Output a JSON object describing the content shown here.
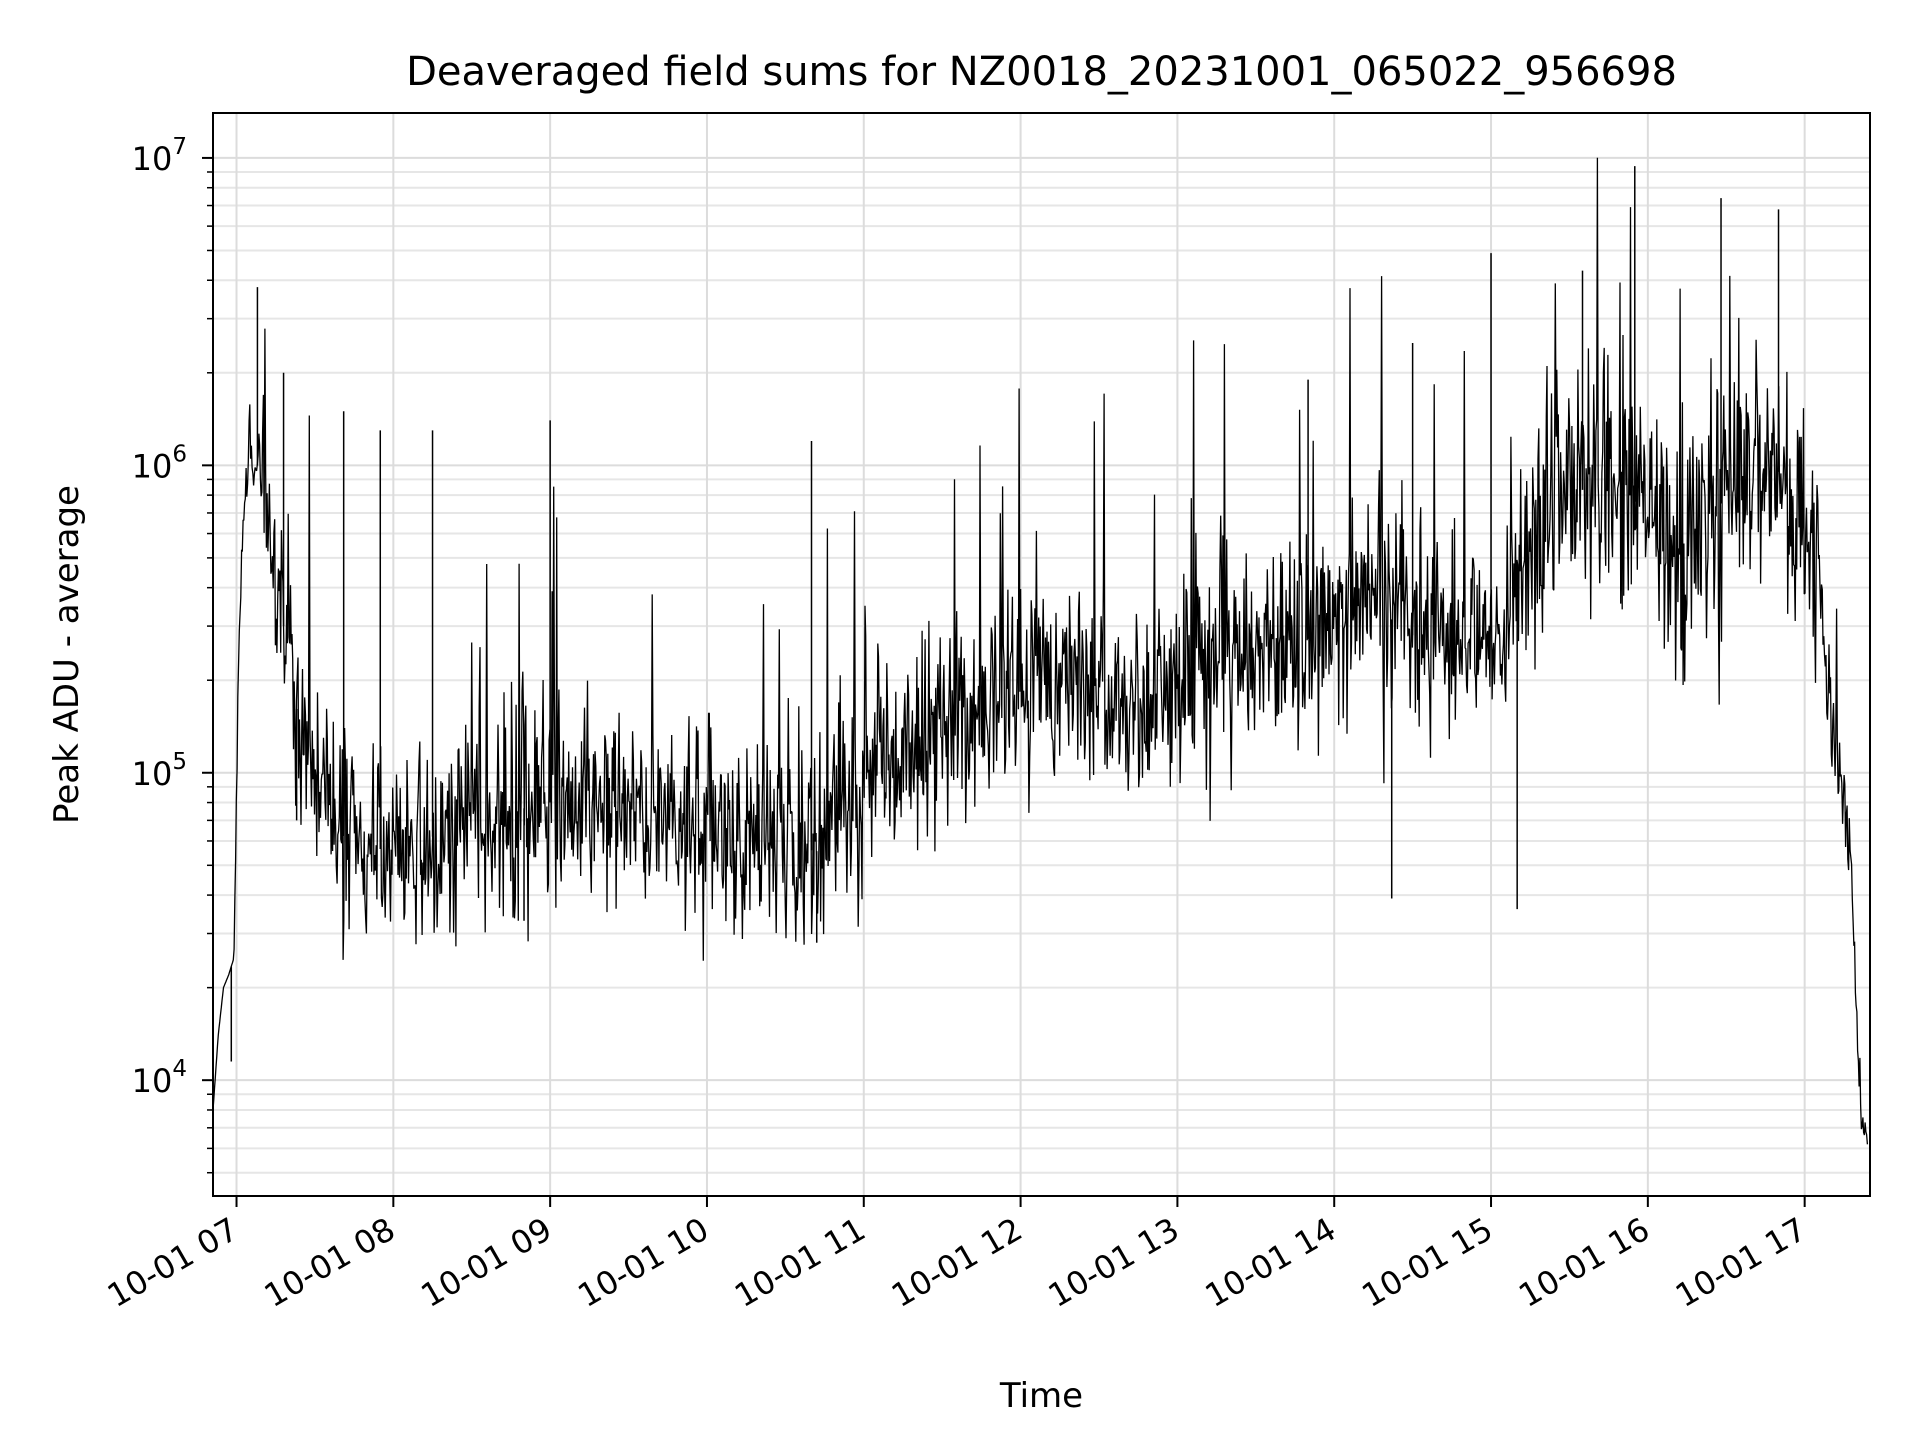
{
  "chart_data": {
    "type": "line",
    "title": "Deaveraged field sums for NZ0018_20231001_065022_956698",
    "xlabel": "Time",
    "ylabel": "Peak ADU - average",
    "yscale": "log",
    "ylim": [
      4200,
      14000000
    ],
    "xlim": [
      "2023-10-01 06:51",
      "2023-10-01 17:25"
    ],
    "grid": true,
    "grid_minor": true,
    "line_color": "#000000",
    "x_ticks": [
      {
        "value": "2023-10-01 07:00",
        "label": "10-01 07"
      },
      {
        "value": "2023-10-01 08:00",
        "label": "10-01 08"
      },
      {
        "value": "2023-10-01 09:00",
        "label": "10-01 09"
      },
      {
        "value": "2023-10-01 10:00",
        "label": "10-01 10"
      },
      {
        "value": "2023-10-01 11:00",
        "label": "10-01 11"
      },
      {
        "value": "2023-10-01 12:00",
        "label": "10-01 12"
      },
      {
        "value": "2023-10-01 13:00",
        "label": "10-01 13"
      },
      {
        "value": "2023-10-01 14:00",
        "label": "10-01 14"
      },
      {
        "value": "2023-10-01 15:00",
        "label": "10-01 15"
      },
      {
        "value": "2023-10-01 16:00",
        "label": "10-01 16"
      },
      {
        "value": "2023-10-01 17:00",
        "label": "10-01 17"
      }
    ],
    "y_ticks": [
      {
        "value": 10000,
        "base": "10",
        "exp": "4"
      },
      {
        "value": 100000,
        "base": "10",
        "exp": "5"
      },
      {
        "value": 1000000,
        "base": "10",
        "exp": "6"
      },
      {
        "value": 10000000,
        "base": "10",
        "exp": "7"
      }
    ],
    "series": [
      {
        "x": [
          "2023-10-01 06:51",
          "2023-10-01 06:53",
          "2023-10-01 06:55",
          "2023-10-01 06:57",
          "2023-10-01 06:59",
          "2023-10-01 07:01",
          "2023-10-01 07:03",
          "2023-10-01 07:05",
          "2023-10-01 07:07",
          "2023-10-01 07:09",
          "2023-10-01 07:12",
          "2023-10-01 07:15",
          "2023-10-01 07:18",
          "2023-10-01 07:21",
          "2023-10-01 07:25",
          "2023-10-01 07:30",
          "2023-10-01 07:36",
          "2023-10-01 07:42",
          "2023-10-01 07:50",
          "2023-10-01 08:00",
          "2023-10-01 08:15",
          "2023-10-01 08:30",
          "2023-10-01 08:45",
          "2023-10-01 09:00",
          "2023-10-01 09:15",
          "2023-10-01 09:30",
          "2023-10-01 09:45",
          "2023-10-01 10:00",
          "2023-10-01 10:15",
          "2023-10-01 10:30",
          "2023-10-01 10:45",
          "2023-10-01 11:00",
          "2023-10-01 11:15",
          "2023-10-01 11:30",
          "2023-10-01 11:45",
          "2023-10-01 12:00",
          "2023-10-01 12:15",
          "2023-10-01 12:30",
          "2023-10-01 12:45",
          "2023-10-01 13:00",
          "2023-10-01 13:15",
          "2023-10-01 13:30",
          "2023-10-01 13:45",
          "2023-10-01 14:00",
          "2023-10-01 14:15",
          "2023-10-01 14:30",
          "2023-10-01 14:45",
          "2023-10-01 15:00",
          "2023-10-01 15:15",
          "2023-10-01 15:30",
          "2023-10-01 15:45",
          "2023-10-01 16:00",
          "2023-10-01 16:15",
          "2023-10-01 16:30",
          "2023-10-01 16:45",
          "2023-10-01 17:00",
          "2023-10-01 17:05",
          "2023-10-01 17:10",
          "2023-10-01 17:14",
          "2023-10-01 17:18",
          "2023-10-01 17:21",
          "2023-10-01 17:24"
        ],
        "values": [
          8000,
          14000,
          20000,
          22000,
          25000,
          300000,
          800000,
          1100000,
          950000,
          1050000,
          600000,
          400000,
          300000,
          200000,
          130000,
          100000,
          75000,
          60000,
          55000,
          58000,
          62000,
          70000,
          75000,
          80000,
          85000,
          80000,
          75000,
          65000,
          60000,
          58000,
          55000,
          90000,
          130000,
          150000,
          160000,
          200000,
          220000,
          180000,
          160000,
          200000,
          220000,
          250000,
          260000,
          300000,
          350000,
          280000,
          250000,
          300000,
          500000,
          800000,
          900000,
          700000,
          500000,
          800000,
          1200000,
          600000,
          500000,
          150000,
          90000,
          50000,
          8000,
          6000
        ],
        "spread": [
          1,
          1,
          1,
          1,
          1,
          1.3,
          1.3,
          1.3,
          1.3,
          1.5,
          1.6,
          1.7,
          1.8,
          1.9,
          2,
          2.1,
          2.2,
          2.3,
          2.3,
          2.4,
          2.4,
          2.4,
          2.4,
          2.4,
          2.4,
          2.4,
          2.4,
          2.4,
          2.4,
          2.4,
          2.4,
          2.4,
          2.4,
          2.4,
          2.4,
          2.4,
          2.4,
          2.4,
          2.4,
          2.4,
          2.4,
          2.5,
          2.5,
          2.5,
          2.6,
          2.6,
          2.6,
          2.7,
          2.8,
          2.8,
          2.8,
          2.8,
          2.8,
          2.8,
          2.8,
          2.5,
          2,
          1.8,
          1.5,
          1.3,
          1.2,
          1.1
        ]
      }
    ],
    "peaks": [
      {
        "x": "2023-10-01 07:08",
        "value": 3800000
      },
      {
        "x": "2023-10-01 07:18",
        "value": 2000000
      },
      {
        "x": "2023-10-01 07:41",
        "value": 1500000
      },
      {
        "x": "2023-10-01 07:55",
        "value": 1300000
      },
      {
        "x": "2023-10-01 08:15",
        "value": 1300000
      },
      {
        "x": "2023-10-01 09:00",
        "value": 1400000
      },
      {
        "x": "2023-10-01 10:40",
        "value": 1200000
      },
      {
        "x": "2023-10-01 13:50",
        "value": 1900000
      },
      {
        "x": "2023-10-01 14:30",
        "value": 2500000
      },
      {
        "x": "2023-10-01 15:00",
        "value": 4900000
      },
      {
        "x": "2023-10-01 15:35",
        "value": 4300000
      },
      {
        "x": "2023-10-01 15:55",
        "value": 9400000
      },
      {
        "x": "2023-10-01 16:28",
        "value": 7400000
      },
      {
        "x": "2023-10-01 16:50",
        "value": 6800000
      }
    ],
    "dips": [
      {
        "x": "2023-10-01 06:58",
        "value": 11500
      },
      {
        "x": "2023-10-01 07:23",
        "value": 70000
      },
      {
        "x": "2023-10-01 08:50",
        "value": 33000
      },
      {
        "x": "2023-10-01 10:42",
        "value": 28000
      },
      {
        "x": "2023-10-01 14:22",
        "value": 39000
      },
      {
        "x": "2023-10-01 15:10",
        "value": 36000
      }
    ]
  }
}
